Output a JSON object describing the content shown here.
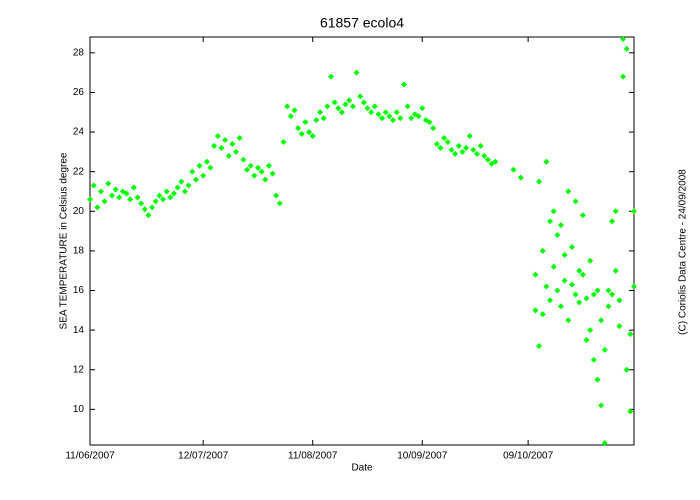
{
  "chart_data": {
    "type": "scatter",
    "title": "61857 ecolo4",
    "x_label": "Date",
    "y_label": "SEA TEMPERATURE in Celsius degree",
    "annotation": "(C) Coriolis Data Centre - 24/09/2008",
    "xlim": [
      "2007-06-11",
      "2007-11-07"
    ],
    "xticks": [
      {
        "value": "2007-06-11",
        "label": "11/06/2007"
      },
      {
        "value": "2007-07-12",
        "label": "12/07/2007"
      },
      {
        "value": "2007-08-11",
        "label": "11/08/2007"
      },
      {
        "value": "2007-09-10",
        "label": "10/09/2007"
      },
      {
        "value": "2007-10-09",
        "label": "09/10/2007"
      }
    ],
    "ylim": [
      8.2,
      28.8
    ],
    "yticks": [
      10,
      12,
      14,
      16,
      18,
      20,
      22,
      24,
      26,
      28
    ],
    "grid": false,
    "series": [
      {
        "color": "#00ff00",
        "x": [
          "2007-06-11",
          "2007-06-12",
          "2007-06-13",
          "2007-06-14",
          "2007-06-15",
          "2007-06-16",
          "2007-06-17",
          "2007-06-18",
          "2007-06-19",
          "2007-06-20",
          "2007-06-21",
          "2007-06-22",
          "2007-06-23",
          "2007-06-24",
          "2007-06-25",
          "2007-06-26",
          "2007-06-27",
          "2007-06-28",
          "2007-06-29",
          "2007-06-30",
          "2007-07-01",
          "2007-07-02",
          "2007-07-03",
          "2007-07-04",
          "2007-07-05",
          "2007-07-06",
          "2007-07-07",
          "2007-07-08",
          "2007-07-09",
          "2007-07-10",
          "2007-07-11",
          "2007-07-12",
          "2007-07-13",
          "2007-07-14",
          "2007-07-15",
          "2007-07-16",
          "2007-07-17",
          "2007-07-18",
          "2007-07-19",
          "2007-07-20",
          "2007-07-21",
          "2007-07-22",
          "2007-07-23",
          "2007-07-24",
          "2007-07-25",
          "2007-07-26",
          "2007-07-27",
          "2007-07-28",
          "2007-07-29",
          "2007-07-30",
          "2007-07-31",
          "2007-08-01",
          "2007-08-02",
          "2007-08-03",
          "2007-08-04",
          "2007-08-05",
          "2007-08-06",
          "2007-08-07",
          "2007-08-08",
          "2007-08-09",
          "2007-08-10",
          "2007-08-11",
          "2007-08-12",
          "2007-08-13",
          "2007-08-14",
          "2007-08-15",
          "2007-08-16",
          "2007-08-17",
          "2007-08-18",
          "2007-08-19",
          "2007-08-20",
          "2007-08-21",
          "2007-08-22",
          "2007-08-23",
          "2007-08-24",
          "2007-08-25",
          "2007-08-26",
          "2007-08-27",
          "2007-08-28",
          "2007-08-29",
          "2007-08-30",
          "2007-08-31",
          "2007-09-01",
          "2007-09-02",
          "2007-09-03",
          "2007-09-04",
          "2007-09-05",
          "2007-09-06",
          "2007-09-07",
          "2007-09-08",
          "2007-09-09",
          "2007-09-10",
          "2007-09-11",
          "2007-09-12",
          "2007-09-13",
          "2007-09-14",
          "2007-09-15",
          "2007-09-16",
          "2007-09-17",
          "2007-09-18",
          "2007-09-19",
          "2007-09-20",
          "2007-09-21",
          "2007-09-22",
          "2007-09-23",
          "2007-09-24",
          "2007-09-25",
          "2007-09-26",
          "2007-09-27",
          "2007-09-28",
          "2007-09-29",
          "2007-09-30",
          "2007-10-05",
          "2007-10-07",
          "2007-10-11",
          "2007-10-11",
          "2007-10-12",
          "2007-10-12",
          "2007-10-13",
          "2007-10-13",
          "2007-10-14",
          "2007-10-14",
          "2007-10-15",
          "2007-10-15",
          "2007-10-16",
          "2007-10-16",
          "2007-10-17",
          "2007-10-17",
          "2007-10-18",
          "2007-10-18",
          "2007-10-19",
          "2007-10-19",
          "2007-10-20",
          "2007-10-20",
          "2007-10-21",
          "2007-10-21",
          "2007-10-22",
          "2007-10-22",
          "2007-10-23",
          "2007-10-23",
          "2007-10-24",
          "2007-10-24",
          "2007-10-25",
          "2007-10-25",
          "2007-10-26",
          "2007-10-26",
          "2007-10-27",
          "2007-10-27",
          "2007-10-28",
          "2007-10-28",
          "2007-10-29",
          "2007-10-29",
          "2007-10-30",
          "2007-10-30",
          "2007-10-31",
          "2007-10-31",
          "2007-11-01",
          "2007-11-01",
          "2007-11-02",
          "2007-11-02",
          "2007-11-03",
          "2007-11-03",
          "2007-11-04",
          "2007-11-04",
          "2007-11-05",
          "2007-11-05",
          "2007-11-06",
          "2007-11-06",
          "2007-11-07",
          "2007-11-07"
        ],
        "values": [
          20.6,
          21.3,
          20.2,
          21.0,
          20.5,
          21.4,
          20.8,
          21.1,
          20.7,
          21.0,
          20.9,
          20.6,
          21.2,
          20.7,
          20.4,
          20.1,
          19.8,
          20.2,
          20.5,
          20.8,
          20.6,
          21.0,
          20.7,
          20.9,
          21.2,
          21.5,
          21.0,
          21.3,
          22.0,
          21.6,
          22.3,
          21.8,
          22.5,
          22.2,
          23.3,
          23.8,
          23.2,
          23.6,
          22.8,
          23.4,
          23.0,
          23.7,
          22.6,
          22.1,
          22.3,
          21.8,
          22.2,
          22.0,
          21.6,
          22.3,
          21.9,
          20.8,
          20.4,
          23.5,
          25.3,
          24.8,
          25.1,
          24.2,
          23.9,
          24.5,
          24.0,
          23.8,
          24.6,
          25.0,
          24.7,
          25.3,
          26.8,
          25.5,
          25.2,
          25.0,
          25.4,
          25.6,
          25.3,
          27.0,
          25.8,
          25.5,
          25.2,
          25.0,
          25.3,
          24.9,
          24.7,
          25.0,
          24.8,
          24.6,
          25.0,
          24.7,
          26.4,
          25.3,
          24.7,
          24.9,
          24.8,
          25.2,
          24.6,
          24.5,
          24.2,
          23.4,
          23.2,
          23.7,
          23.5,
          23.1,
          22.9,
          23.3,
          23.0,
          23.2,
          23.8,
          23.1,
          22.9,
          23.3,
          22.8,
          22.6,
          22.4,
          22.5,
          22.1,
          21.7,
          15.0,
          16.8,
          13.2,
          21.5,
          18.0,
          14.8,
          22.5,
          16.2,
          19.5,
          15.5,
          17.2,
          20.0,
          16.0,
          18.8,
          15.2,
          19.3,
          17.8,
          16.5,
          21.0,
          14.5,
          16.3,
          18.2,
          20.5,
          15.8,
          17.0,
          15.4,
          16.8,
          19.8,
          15.6,
          13.5,
          14.0,
          17.5,
          12.5,
          15.8,
          11.5,
          16.0,
          10.2,
          14.5,
          8.3,
          13.0,
          16.0,
          15.2,
          15.8,
          19.5,
          20.0,
          17.0,
          14.2,
          15.5,
          26.8,
          28.7,
          28.2,
          12.0,
          9.9,
          13.8,
          16.2,
          20.0
        ]
      }
    ]
  }
}
